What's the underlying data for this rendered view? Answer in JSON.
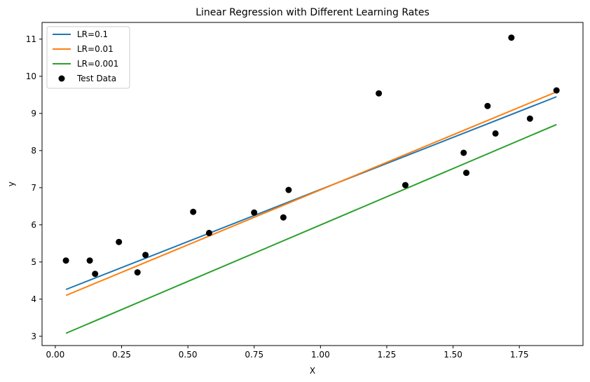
{
  "chart_data": {
    "type": "line",
    "title": "Linear Regression with Different Learning Rates",
    "xlabel": "X",
    "ylabel": "y",
    "xlim": [
      -0.05,
      1.99
    ],
    "ylim": [
      2.75,
      11.45
    ],
    "xticks": [
      0.0,
      0.25,
      0.5,
      0.75,
      1.0,
      1.25,
      1.5,
      1.75
    ],
    "xtick_labels": [
      "0.00",
      "0.25",
      "0.50",
      "0.75",
      "1.00",
      "1.25",
      "1.50",
      "1.75"
    ],
    "yticks": [
      3,
      4,
      5,
      6,
      7,
      8,
      9,
      10,
      11
    ],
    "ytick_labels": [
      "3",
      "4",
      "5",
      "6",
      "7",
      "8",
      "9",
      "10",
      "11"
    ],
    "grid": false,
    "legend_position": "top-left",
    "series": [
      {
        "name": "LR=0.1",
        "kind": "line",
        "color": "#1f77b4",
        "x": [
          0.04,
          1.89
        ],
        "y": [
          4.26,
          9.45
        ]
      },
      {
        "name": "LR=0.01",
        "kind": "line",
        "color": "#ff7f0e",
        "x": [
          0.04,
          1.89
        ],
        "y": [
          4.1,
          9.58
        ]
      },
      {
        "name": "LR=0.001",
        "kind": "line",
        "color": "#2ca02c",
        "x": [
          0.04,
          1.89
        ],
        "y": [
          3.08,
          8.7
        ]
      },
      {
        "name": "Test Data",
        "kind": "scatter",
        "color": "#000000",
        "points": [
          [
            0.04,
            5.04
          ],
          [
            0.13,
            5.04
          ],
          [
            0.15,
            4.68
          ],
          [
            0.24,
            5.54
          ],
          [
            0.31,
            4.72
          ],
          [
            0.34,
            5.19
          ],
          [
            0.52,
            6.35
          ],
          [
            0.58,
            5.78
          ],
          [
            0.75,
            6.33
          ],
          [
            0.86,
            6.2
          ],
          [
            0.88,
            6.94
          ],
          [
            1.22,
            9.54
          ],
          [
            1.32,
            7.07
          ],
          [
            1.54,
            7.94
          ],
          [
            1.55,
            7.4
          ],
          [
            1.63,
            9.2
          ],
          [
            1.66,
            8.46
          ],
          [
            1.72,
            11.04
          ],
          [
            1.79,
            8.86
          ],
          [
            1.89,
            9.62
          ]
        ]
      }
    ]
  }
}
